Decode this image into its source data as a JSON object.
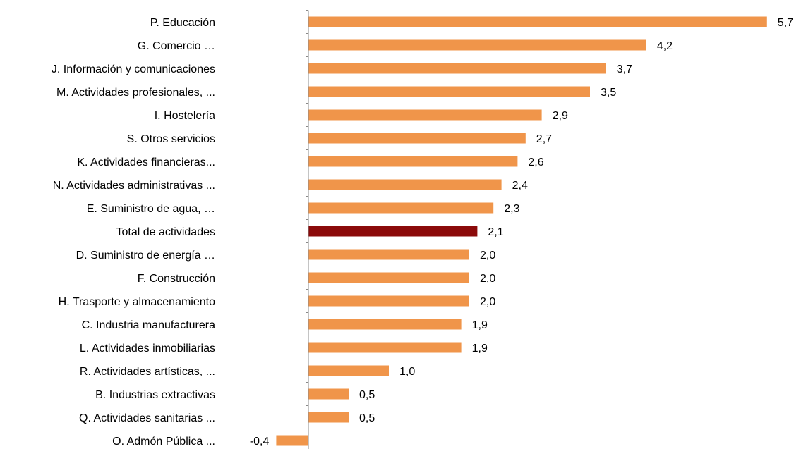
{
  "chart_data": {
    "type": "bar",
    "orientation": "horizontal",
    "title": "",
    "xlabel": "",
    "ylabel": "",
    "xlim": [
      -0.5,
      5.9
    ],
    "grid": false,
    "legend": "none",
    "categories": [
      "P. Educación",
      "G. Comercio …",
      "J. Información y comunicaciones",
      "M. Actividades profesionales, ...",
      "I. Hostelería",
      "S. Otros servicios",
      "K. Actividades financieras...",
      "N. Actividades administrativas ...",
      "E. Suministro de agua, …",
      "Total de actividades",
      "D. Suministro de energía …",
      "F. Construcción",
      "H. Trasporte y almacenamiento",
      "C. Industria manufacturera",
      "L. Actividades inmobiliarias",
      "R. Actividades artísticas, ...",
      "B. Industrias extractivas",
      "Q. Actividades sanitarias ...",
      "O. Admón Pública ..."
    ],
    "values": [
      5.7,
      4.2,
      3.7,
      3.5,
      2.9,
      2.7,
      2.6,
      2.4,
      2.3,
      2.1,
      2.0,
      2.0,
      2.0,
      1.9,
      1.9,
      1.0,
      0.5,
      0.5,
      -0.4
    ],
    "value_labels": [
      "5,7",
      "4,2",
      "3,7",
      "3,5",
      "2,9",
      "2,7",
      "2,6",
      "2,4",
      "2,3",
      "2,1",
      "2,0",
      "2,0",
      "2,0",
      "1,9",
      "1,9",
      "1,0",
      "0,5",
      "0,5",
      "-0,4"
    ],
    "highlight_index": 9,
    "colors": {
      "bar": "#F0954A",
      "highlight": "#8B0A0A",
      "axis": "#888888",
      "text": "#000000"
    }
  }
}
